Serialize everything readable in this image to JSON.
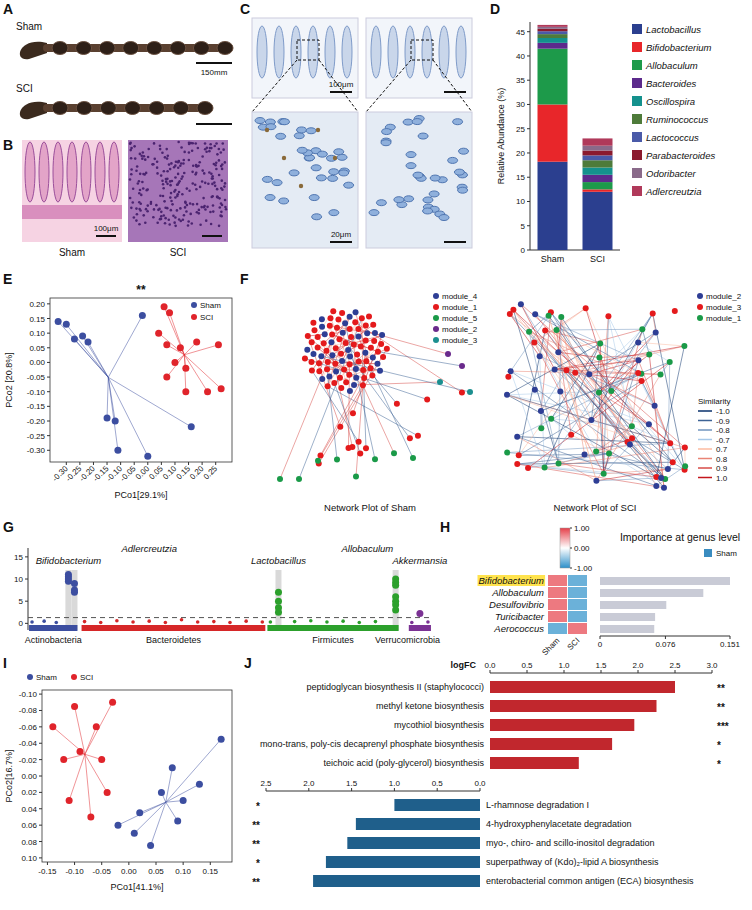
{
  "panel_letters": [
    "A",
    "B",
    "C",
    "D",
    "E",
    "F",
    "G",
    "H",
    "I",
    "J"
  ],
  "images": {
    "A": {
      "labels": [
        "Sham",
        "SCI"
      ],
      "scale_bar": "150mm"
    },
    "B": {
      "labels": [
        "Sham",
        "SCI"
      ],
      "scale_bar": "100μm"
    },
    "C": {
      "scale_bars": [
        "100μm",
        "20μm"
      ]
    }
  },
  "networks": [
    {
      "title": "Network Plot of Sham",
      "modules": [
        {
          "name": "module_4",
          "color": "#2e3e95"
        },
        {
          "name": "module_1",
          "color": "#e41a1c"
        },
        {
          "name": "module_5",
          "color": "#1a9a48"
        },
        {
          "name": "module_2",
          "color": "#6a2a8c"
        },
        {
          "name": "module_3",
          "color": "#1b8f8f"
        }
      ]
    },
    {
      "title": "Network Plot of SCI",
      "modules": [
        {
          "name": "module_2",
          "color": "#2e3e95"
        },
        {
          "name": "module_3",
          "color": "#e41a1c"
        },
        {
          "name": "module_1",
          "color": "#1a9a48"
        }
      ]
    }
  ],
  "similarity_legend": {
    "title": "Similarity",
    "levels": [
      {
        "value": -1,
        "label": "-1.0"
      },
      -0.9,
      -0.8,
      -0.7,
      0.7,
      0.8,
      0.9,
      {
        "value": 1,
        "label": "1.0"
      }
    ]
  },
  "chart_data": [
    {
      "type": "bar",
      "stacked": true,
      "y_label": "Relative Abundance (%)",
      "categories": [
        "Sham",
        "SCI"
      ],
      "ylim": [
        0,
        47
      ],
      "yticks": [
        0,
        5,
        10,
        15,
        20,
        25,
        30,
        35,
        40,
        45
      ],
      "legend": "right",
      "series": [
        {
          "name": "Lactobacillus",
          "color": "#2b3f8f",
          "values": [
            18.2,
            12
          ]
        },
        {
          "name": "Bifidobacterium",
          "color": "#e8262a",
          "values": [
            11.8,
            0.5
          ]
        },
        {
          "name": "Allobaculum",
          "color": "#1d9a4a",
          "values": [
            11.5,
            1.5
          ]
        },
        {
          "name": "Bacteroides",
          "color": "#5c2a8c",
          "values": [
            1.2,
            1.5
          ]
        },
        {
          "name": "Oscillospira",
          "color": "#14918d",
          "values": [
            1.0,
            1.5
          ]
        },
        {
          "name": "Ruminococcus",
          "color": "#4e7b3a",
          "values": [
            0.8,
            1.5
          ]
        },
        {
          "name": "Lactococcus",
          "color": "#4a5aa8",
          "values": [
            0.6,
            1
          ]
        },
        {
          "name": "Parabacteroides",
          "color": "#8b1a2e",
          "values": [
            0.5,
            1
          ]
        },
        {
          "name": "Odoribacter",
          "color": "#8a6a8a",
          "values": [
            0.4,
            1
          ]
        },
        {
          "name": "Adlercreutzia",
          "color": "#b0395a",
          "values": [
            0.4,
            1.5
          ]
        }
      ]
    },
    {
      "type": "scatter",
      "title": "**",
      "x_label": "PCo1[29.1%]",
      "y_label": "PCo2 [20.8%]",
      "xlim": [
        -0.36,
        0.31
      ],
      "ylim": [
        -0.34,
        0.22
      ],
      "xticks": [
        {
          "value": -0.3,
          "label": "-0.30"
        },
        -0.25,
        {
          "value": -0.2,
          "label": "-0.20"
        },
        -0.15,
        {
          "value": -0.1,
          "label": "-0.10"
        },
        -0.05,
        {
          "value": 0,
          "label": "0.00"
        },
        0.05,
        {
          "value": 0.1,
          "label": "0.10"
        },
        0.15,
        {
          "value": 0.2,
          "label": "0.20"
        },
        0.25
      ],
      "yticks": [
        {
          "value": -0.3,
          "label": "-0.30"
        },
        -0.25,
        {
          "value": -0.2,
          "label": "-0.20"
        },
        -0.15,
        {
          "value": -0.1,
          "label": "-0.10"
        },
        -0.05,
        {
          "value": 0,
          "label": "0.00"
        },
        0.05,
        {
          "value": 0.1,
          "label": "0.10"
        },
        0.15,
        {
          "value": 0.2,
          "label": "0.20"
        }
      ],
      "legend": "top-right",
      "series": [
        {
          "name": "Sham",
          "color": "#3c4ea0",
          "x": [
            -0.33,
            -0.3,
            -0.27,
            -0.24,
            -0.22,
            -0.15,
            -0.12,
            -0.11,
            -0.02,
            0.0,
            0.16
          ],
          "values": [
            0.14,
            0.13,
            0.08,
            0.09,
            0.07,
            -0.19,
            -0.2,
            -0.3,
            0.16,
            -0.32,
            -0.22
          ]
        },
        {
          "name": "SCI",
          "color": "#e0242b",
          "x": [
            0.06,
            0.08,
            0.04,
            0.07,
            0.12,
            0.18,
            0.26,
            0.1,
            0.14,
            0.07,
            0.22,
            0.14,
            0.27
          ],
          "values": [
            0.19,
            0.17,
            0.1,
            0.06,
            0.05,
            0.07,
            0.06,
            0.0,
            -0.02,
            -0.05,
            -0.1,
            -0.1,
            -0.09
          ]
        }
      ]
    },
    {
      "type": "scatter",
      "tick_labels": "y",
      "xlim": [
        0,
        100
      ],
      "ylim": [
        -1.5,
        17
      ],
      "yticks": [
        0,
        5,
        10,
        15
      ],
      "threshold": 1.3,
      "highlights": [
        10,
        11.5,
        62,
        91
      ],
      "annotations": [
        {
          "text": "Bifidobacterium",
          "x": 10,
          "y": 13.5
        },
        {
          "text": "Adlercreutzia",
          "x": 30,
          "y": 16
        },
        {
          "text": "Lactobacillus",
          "x": 62,
          "y": 13.5
        },
        {
          "text": "Allobaculum",
          "x": 84,
          "y": 16
        },
        {
          "text": "Akkermansia",
          "x": 97,
          "y": 13.5
        }
      ],
      "series": [
        {
          "name": "Actinobacteria",
          "color": "#3c4ea0",
          "x": [
            1,
            4,
            7,
            10,
            10,
            10,
            10,
            11.5,
            11.5,
            11.5
          ],
          "values": [
            0.3,
            0.5,
            0.2,
            11,
            10.5,
            10,
            9.5,
            9,
            7.5,
            7
          ]
        },
        {
          "name": "Bacteroidetes",
          "color": "#d62728",
          "x": [
            14,
            18,
            22,
            26,
            30,
            34,
            38,
            42,
            46,
            50,
            54,
            58
          ],
          "values": [
            0.4,
            0.2,
            0.6,
            0.3,
            0.5,
            0.2,
            0.8,
            0.3,
            0.4,
            0.2,
            0.5,
            0.3
          ]
        },
        {
          "name": "Firmicutes",
          "color": "#2ca02c",
          "x": [
            60,
            62,
            62,
            62,
            62,
            66,
            70,
            74,
            78,
            82,
            86,
            91,
            91,
            91,
            91,
            91,
            91,
            91
          ],
          "values": [
            0.3,
            7,
            5,
            3.5,
            2.5,
            0.4,
            0.6,
            0.3,
            0.5,
            0.2,
            0.4,
            10,
            9.2,
            8.6,
            6,
            5,
            4.2,
            3
          ]
        },
        {
          "name": "Verrucomicrobia",
          "color": "#7b3294",
          "x": [
            95,
            97,
            99
          ],
          "values": [
            0.2,
            2.2,
            0.3
          ]
        }
      ]
    },
    {
      "type": "bar",
      "orientation": "horizontal",
      "title": "Importance at genus level",
      "categories": [
        "Bifidobacterium",
        "Allobaculum",
        "Desulfovibrio",
        "Turicibacter",
        "Aerococcus"
      ],
      "values": [
        0.151,
        0.12,
        0.077,
        0.064,
        0.063
      ],
      "color": "#c9cbd6",
      "xlim": [
        0,
        0.151
      ],
      "xticks": [
        0,
        0.076,
        0.151
      ],
      "heatmap": {
        "columns": [
          "Sham",
          "SCI"
        ],
        "cells": [
          [
            0.7,
            -0.7
          ],
          [
            0.7,
            -0.7
          ],
          [
            0.7,
            -0.7
          ],
          [
            0.7,
            -0.7
          ],
          [
            -0.7,
            0.7
          ]
        ],
        "colorbar": {
          "range": [
            -1,
            1
          ],
          "ticks": [
            {
              "value": 1,
              "label": "1.00"
            },
            {
              "value": 0,
              "label": "0.00"
            },
            {
              "value": -1,
              "label": "-1.00"
            }
          ]
        }
      },
      "legend": "right",
      "legend_items": [
        {
          "name": "Sham",
          "color": "#3a8cc0"
        }
      ]
    },
    {
      "type": "scatter",
      "x_label": "PCo1[41.1%]",
      "y_label": "PCo2[16.7%]",
      "xlim": [
        -0.16,
        0.19
      ],
      "ylim": [
        0.105,
        -0.105
      ],
      "xticks": [
        -0.15,
        {
          "value": -0.1,
          "label": "-0.10"
        },
        -0.05,
        {
          "value": 0,
          "label": "0.00"
        },
        0.05,
        {
          "value": 0.1,
          "label": "0.10"
        },
        0.15
      ],
      "yticks": [
        {
          "value": -0.1,
          "label": "-0.10"
        },
        -0.08,
        -0.06,
        -0.04,
        -0.02,
        {
          "value": 0,
          "label": "0.00"
        },
        0.02,
        0.04,
        0.06,
        0.08,
        {
          "value": 0.1,
          "label": "0.10"
        }
      ],
      "legend": "top",
      "series": [
        {
          "name": "Sham",
          "color": "#3c4ea0",
          "x": [
            0.17,
            0.13,
            0.1,
            0.09,
            0.06,
            0.04,
            0.01,
            0.02,
            -0.02,
            0.08
          ],
          "values": [
            -0.045,
            0.01,
            0.03,
            0.055,
            0.02,
            0.085,
            0.07,
            0.045,
            0.06,
            -0.01
          ]
        },
        {
          "name": "SCI",
          "color": "#e0242b",
          "x": [
            -0.14,
            -0.1,
            -0.12,
            -0.09,
            -0.06,
            -0.05,
            -0.04,
            -0.11,
            -0.07,
            -0.03
          ],
          "values": [
            -0.06,
            -0.085,
            -0.02,
            -0.03,
            -0.06,
            -0.02,
            0.02,
            0.03,
            0.05,
            -0.09
          ]
        }
      ]
    },
    {
      "type": "bar",
      "orientation": "horizontal",
      "x_label": "logFC",
      "categories": [
        "peptidoglycan biosynthesis II (staphylococci)",
        "methyl ketone biosynthesis",
        "mycothiol biosynthesis",
        "mono-trans, poly-cis decaprenyl phosphate biosynthesis",
        "teichoic acid (poly-glycerol) biosynthesis"
      ],
      "values": [
        2.5,
        2.25,
        1.95,
        1.65,
        1.2
      ],
      "significance": [
        "**",
        "**",
        "***",
        "*",
        "*"
      ],
      "color": "#c1272d",
      "xlim": [
        0,
        3
      ],
      "xticks": [
        {
          "value": 0,
          "label": "0.0"
        },
        0.5,
        {
          "value": 1,
          "label": "1.0"
        },
        1.5,
        {
          "value": 2,
          "label": "2.0"
        },
        2.5,
        {
          "value": 3,
          "label": "3.0"
        }
      ]
    },
    {
      "type": "bar",
      "orientation": "horizontal",
      "categories": [
        "L-rhamnose degradation I",
        "4-hydroxyphenylacetate degradation",
        "myo-, chiro- and scillo-inositol degradation",
        "superpathway of (Kdo)₂-lipid A biosynthesis",
        "enterobacterial common antigen (ECA) biosynthesis"
      ],
      "values": [
        1.0,
        1.45,
        1.55,
        1.8,
        1.95
      ],
      "significance": [
        "*",
        "**",
        "**",
        "*",
        "**"
      ],
      "color": "#1f5f8b",
      "xlim": [
        2.5,
        0
      ],
      "xticks": [
        2.5,
        {
          "value": 2,
          "label": "2.0"
        },
        1.5,
        {
          "value": 1,
          "label": "1.0"
        },
        0.5,
        {
          "value": 0,
          "label": "0.0"
        }
      ]
    }
  ]
}
